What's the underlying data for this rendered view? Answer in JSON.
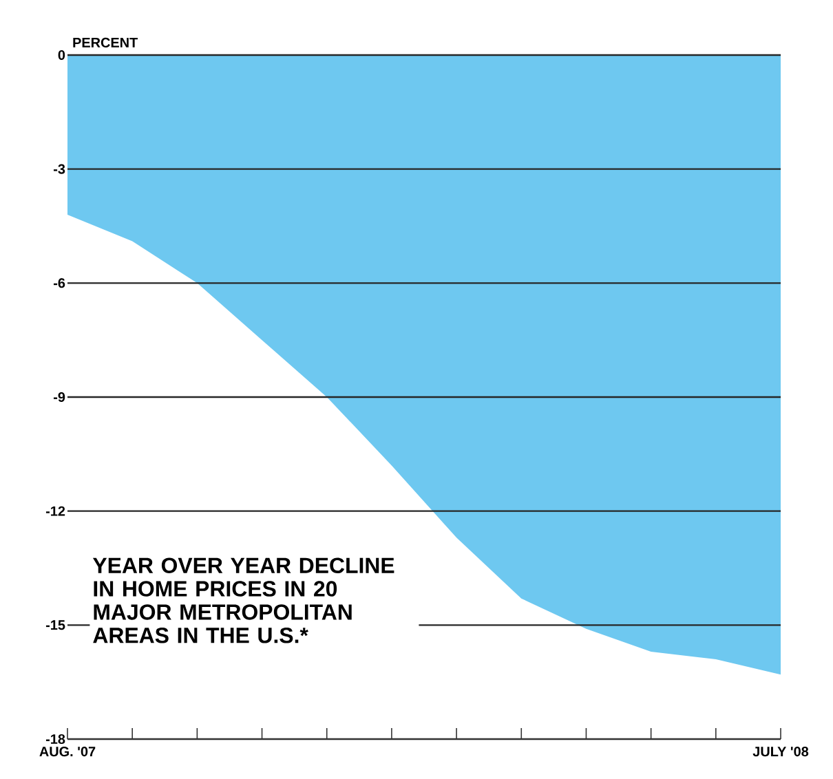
{
  "chart_data": {
    "type": "area",
    "ylabel": "PERCENT",
    "categories": [
      "AUG. '07",
      null,
      null,
      null,
      null,
      null,
      null,
      null,
      null,
      null,
      null,
      "JULY '08"
    ],
    "values": [
      -4.2,
      -4.9,
      -6.0,
      -7.5,
      -9.0,
      -10.8,
      -12.7,
      -14.3,
      -15.1,
      -15.7,
      -15.9,
      -16.3
    ],
    "color": "#6ec8f0",
    "ylim": [
      -18,
      0
    ],
    "yticks": [
      -18,
      -15,
      -12,
      -9,
      -6,
      -3,
      0
    ],
    "grid": "y",
    "annotations": [
      "YEAR OVER YEAR DECLINE IN HOME PRICES IN 20 MAJOR METROPOLITAN AREAS IN THE U.S.*"
    ]
  }
}
